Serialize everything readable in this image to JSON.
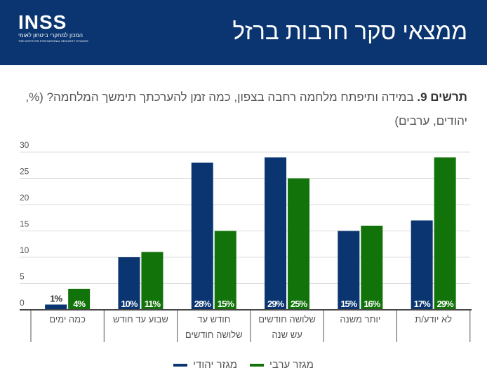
{
  "header": {
    "title": "ממצאי סקר חרבות ברזל",
    "logo_text": "INSS",
    "logo_sub": "המכון למחקרי ביטחון לאומי",
    "logo_en": "THE INSTITUTE FOR NATIONAL SECURITY STUDIES"
  },
  "question": {
    "label": "תרשים 9.",
    "text": " במידה ותיפתח מלחמה רחבה בצפון, כמה זמן להערכתך תימשך המלחמה? (%, יהודים, ערבים)"
  },
  "colors": {
    "header": "#0a3570",
    "jewish": "#0a3570",
    "arab": "#117309"
  },
  "chart_data": {
    "type": "bar",
    "categories": [
      "כמה ימים",
      "שבוע עד חודש",
      "חודש עד שלושה חודשים",
      "שלושה חודשים עש שנה",
      "יותר משנה",
      "לא יודע/ת"
    ],
    "series": [
      {
        "name": "מגזר יהודי",
        "values": [
          1,
          10,
          28,
          29,
          15,
          17
        ],
        "labels": [
          "1%",
          "10%",
          "28%",
          "29%",
          "15%",
          "17%"
        ]
      },
      {
        "name": "מגזר ערבי",
        "values": [
          4,
          11,
          15,
          25,
          16,
          29
        ],
        "labels": [
          "4%",
          "11%",
          "15%",
          "25%",
          "16%",
          "29%"
        ]
      }
    ],
    "yticks": [
      "0",
      "5",
      "10",
      "15",
      "20",
      "25",
      "30"
    ],
    "ylim": [
      0,
      30
    ],
    "grid": true,
    "legend": "bottom"
  }
}
